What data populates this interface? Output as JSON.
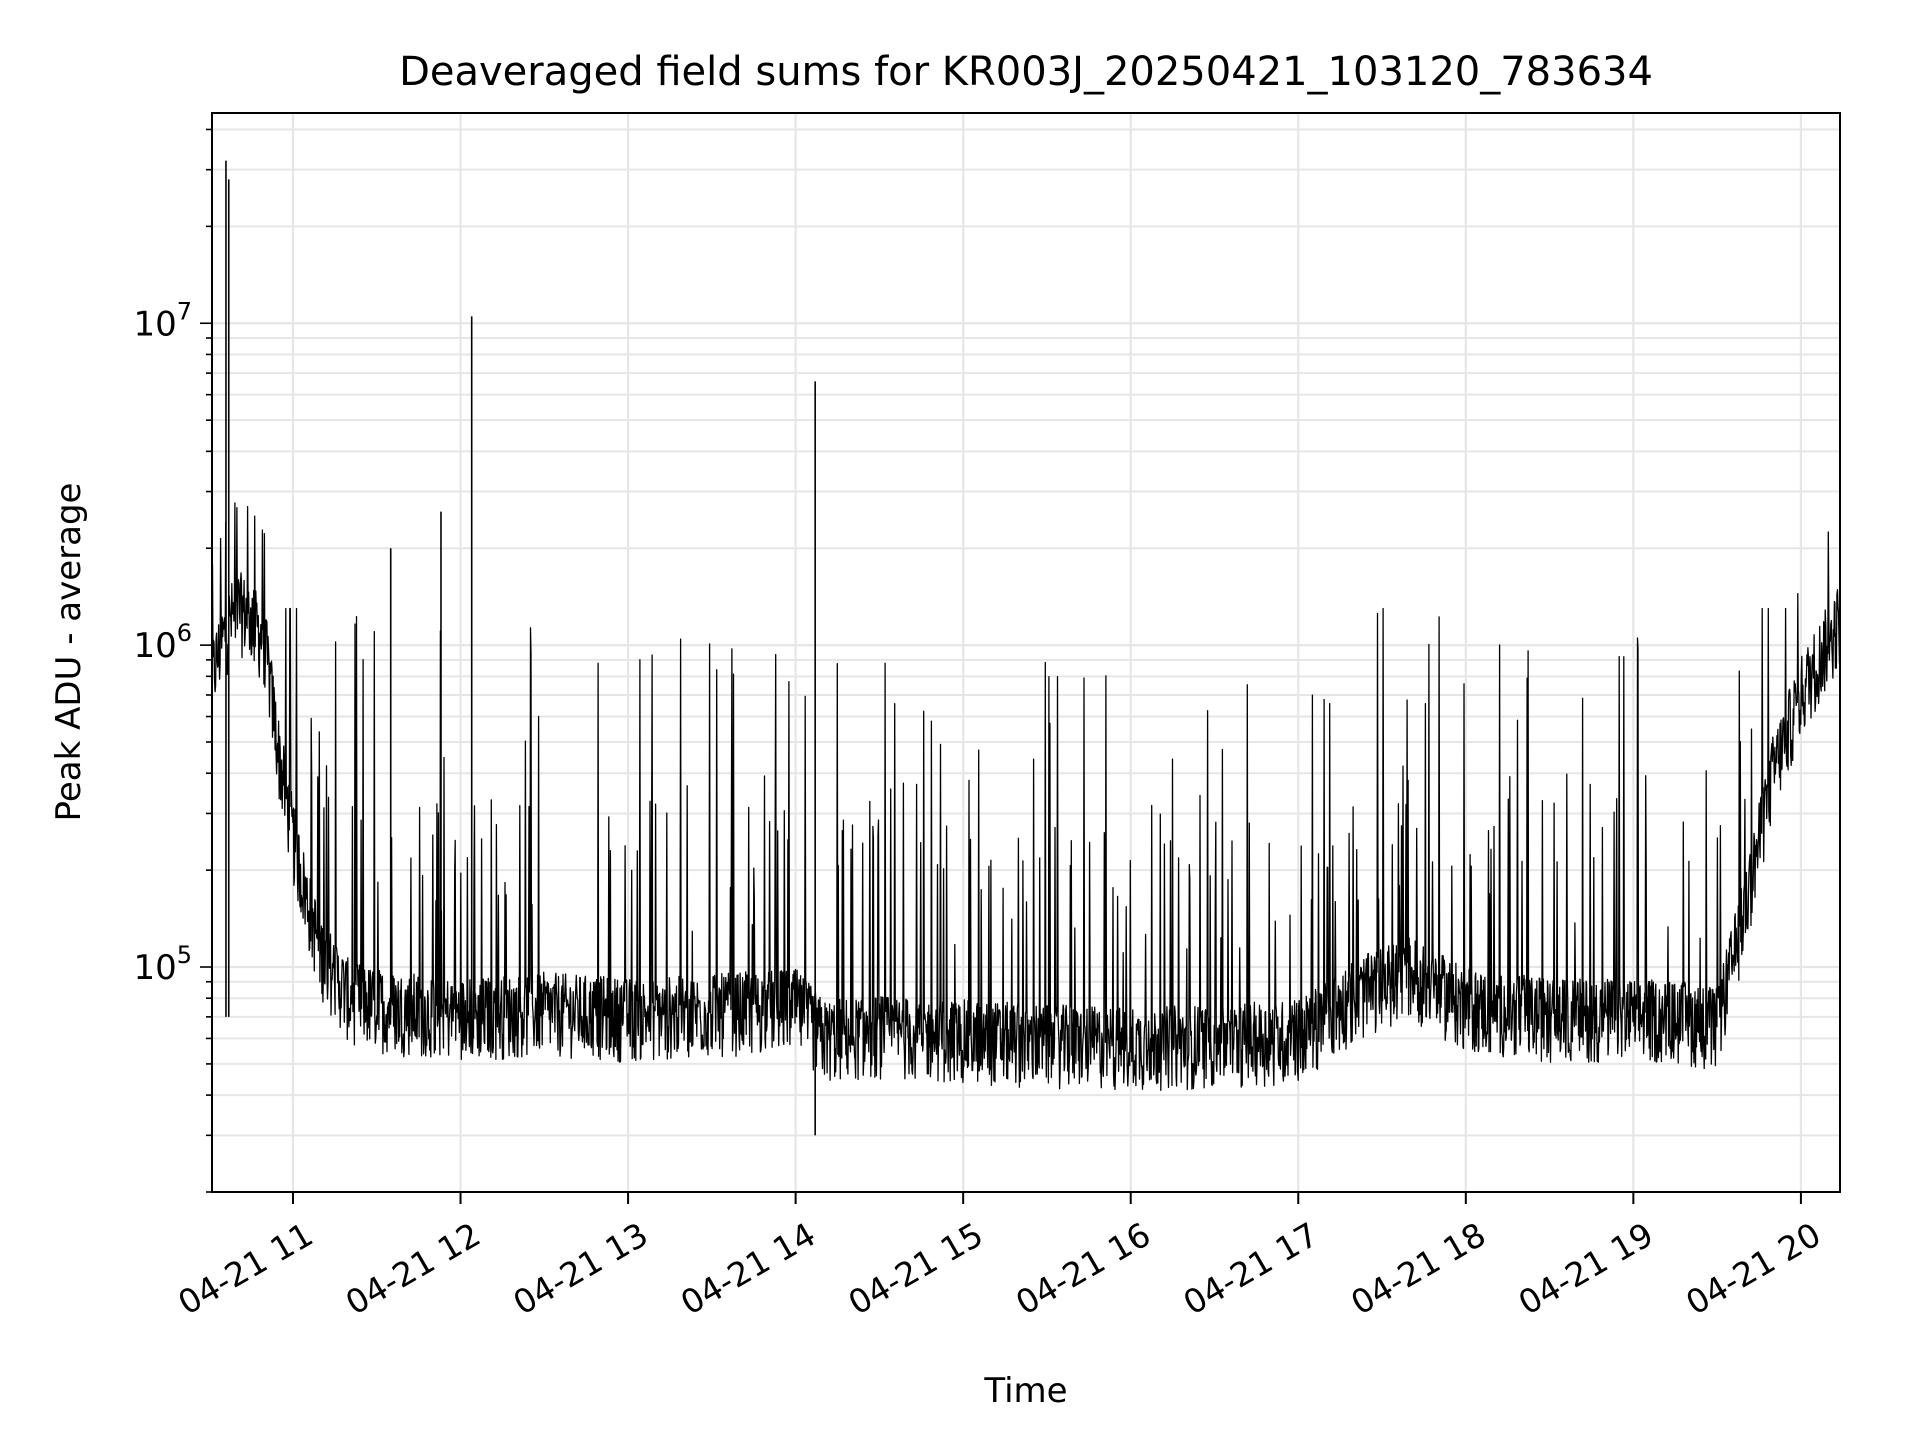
{
  "chart_data": {
    "type": "line",
    "title": "Deaveraged field sums for KR003J_20250421_103120_783634",
    "xlabel": "Time",
    "ylabel": "Peak ADU - average",
    "x_ticks": [
      "04-21 11",
      "04-21 12",
      "04-21 13",
      "04-21 14",
      "04-21 15",
      "04-21 16",
      "04-21 17",
      "04-21 18",
      "04-21 19",
      "04-21 20"
    ],
    "x_tick_values": [
      "2025-04-21 11:00",
      "2025-04-21 12:00",
      "2025-04-21 13:00",
      "2025-04-21 14:00",
      "2025-04-21 15:00",
      "2025-04-21 16:00",
      "2025-04-21 17:00",
      "2025-04-21 18:00",
      "2025-04-21 19:00",
      "2025-04-21 20:00"
    ],
    "y_ticks": [
      {
        "value": 100000,
        "base": "10",
        "exp": "5"
      },
      {
        "value": 1000000,
        "base": "10",
        "exp": "6"
      },
      {
        "value": 10000000,
        "base": "10",
        "exp": "7"
      }
    ],
    "xlim": [
      "2025-04-21 10:31",
      "2025-04-21 20:14"
    ],
    "ylim": [
      20000,
      45000000
    ],
    "yscale": "log",
    "grid": true,
    "line_color": "#000000",
    "series": [
      {
        "x": [
          "2025-04-21 10:31",
          "2025-04-21 10:36",
          "2025-04-21 10:40",
          "2025-04-21 10:45",
          "2025-04-21 10:50",
          "2025-04-21 10:55",
          "2025-04-21 11:00",
          "2025-04-21 11:05",
          "2025-04-21 11:10",
          "2025-04-21 11:20",
          "2025-04-21 11:30",
          "2025-04-21 11:40",
          "2025-04-21 11:50",
          "2025-04-21 12:00",
          "2025-04-21 12:30",
          "2025-04-21 13:00",
          "2025-04-21 13:30",
          "2025-04-21 14:00",
          "2025-04-21 14:10",
          "2025-04-21 14:30",
          "2025-04-21 15:00",
          "2025-04-21 15:30",
          "2025-04-21 16:00",
          "2025-04-21 16:30",
          "2025-04-21 17:00",
          "2025-04-21 17:20",
          "2025-04-21 17:40",
          "2025-04-21 18:00",
          "2025-04-21 18:30",
          "2025-04-21 19:00",
          "2025-04-21 19:20",
          "2025-04-21 19:30",
          "2025-04-21 19:40",
          "2025-04-21 19:50",
          "2025-04-21 20:00",
          "2025-04-21 20:14"
        ],
        "y": [
          800000,
          1100000,
          1300000,
          1200000,
          1000000,
          450000,
          250000,
          160000,
          110000,
          80000,
          75000,
          73000,
          72000,
          70000,
          73000,
          70000,
          72000,
          75000,
          60000,
          62000,
          60000,
          58000,
          57000,
          58000,
          60000,
          80000,
          95000,
          75000,
          70000,
          70000,
          68000,
          65000,
          150000,
          400000,
          700000,
          1200000
        ]
      }
    ],
    "spikes": [
      {
        "x": "2025-04-21 10:36",
        "y": 32000000
      },
      {
        "x": "2025-04-21 10:37",
        "y": 28000000
      },
      {
        "x": "2025-04-21 11:35",
        "y": 2000000
      },
      {
        "x": "2025-04-21 11:53",
        "y": 2600000
      },
      {
        "x": "2025-04-21 12:04",
        "y": 10500000
      },
      {
        "x": "2025-04-21 14:07",
        "y": 6600000
      },
      {
        "x": "2025-04-21 14:07",
        "y": 30000
      }
    ]
  }
}
